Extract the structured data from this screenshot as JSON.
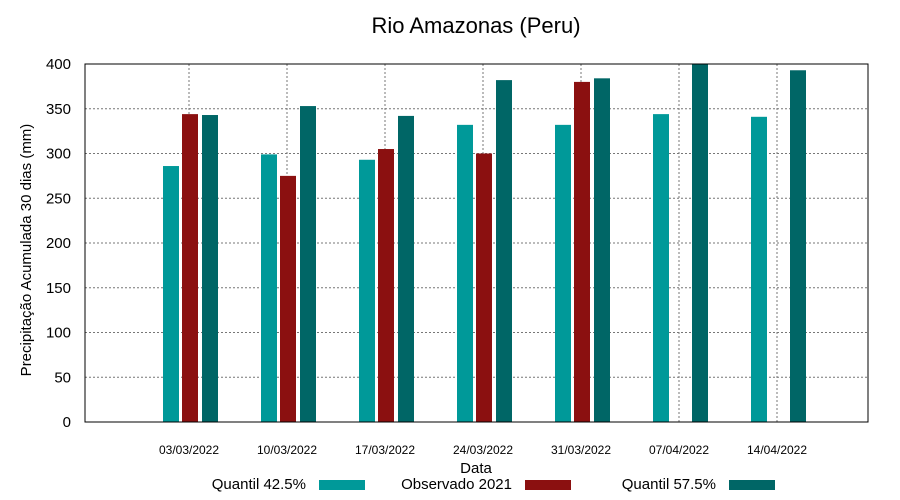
{
  "chart_data": {
    "type": "bar",
    "title": "Rio Amazonas (Peru)",
    "xlabel": "Data",
    "ylabel": "Precipitação Acumulada 30 dias (mm)",
    "ylim": [
      0,
      400
    ],
    "yticks": [
      0,
      50,
      100,
      150,
      200,
      250,
      300,
      350,
      400
    ],
    "grid": true,
    "legend_position": "bottom",
    "categories": [
      "03/03/2022",
      "10/03/2022",
      "17/03/2022",
      "24/03/2022",
      "31/03/2022",
      "07/04/2022",
      "14/04/2022"
    ],
    "series": [
      {
        "name": "Quantil 42.5%",
        "color": "#009999",
        "values": [
          286,
          299,
          293,
          332,
          332,
          344,
          341
        ]
      },
      {
        "name": "Observado 2021",
        "color": "#8B1010",
        "values": [
          344,
          275,
          305,
          300,
          380,
          null,
          null
        ]
      },
      {
        "name": "Quantil 57.5%",
        "color": "#006666",
        "values": [
          343,
          353,
          342,
          382,
          384,
          400,
          393
        ]
      }
    ]
  }
}
